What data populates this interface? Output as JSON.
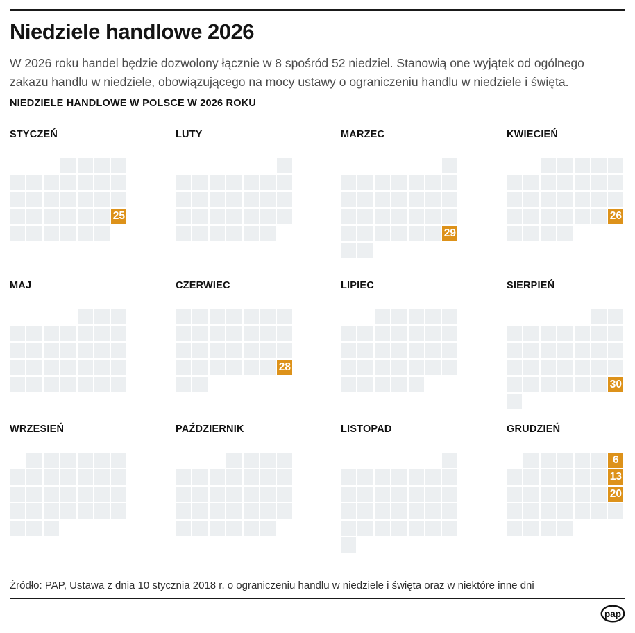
{
  "page": {
    "title": "Niedziele handlowe 2026",
    "intro_lines": [
      "W 2026 roku handel będzie dozwolony łącznie w 8 spośród 52 niedziel. Stanowią one wyjątek od ogólnego",
      "zakazu handlu w niedziele, obowiązującego na mocy ustawy o ograniczeniu handlu w niedziele i święta."
    ],
    "section_header": "NIEDZIELE HANDLOWE W POLSCE W 2026 ROKU",
    "source": "Źródło: PAP, Ustawa z dnia 10 stycznia 2018 r. o ograniczeniu handlu w niedziele i święta oraz w niektóre inne dni",
    "logo_text": "pap"
  },
  "colors": {
    "trading_sunday": "#DD921A",
    "day_cell": "#ECEFF1",
    "rule": "#1A1A1A"
  },
  "chart_data": {
    "type": "heatmap",
    "title": "NIEDZIELE HANDLOWE W POLSCE W 2026 ROKU",
    "year": 2026,
    "week_starts": "monday",
    "total_trading_sundays": 8,
    "total_sundays": 52,
    "months": [
      {
        "name": "STYCZEŃ",
        "first_weekday": 4,
        "num_days": 31,
        "trading_sundays": [
          25
        ]
      },
      {
        "name": "LUTY",
        "first_weekday": 7,
        "num_days": 28,
        "trading_sundays": []
      },
      {
        "name": "MARZEC",
        "first_weekday": 7,
        "num_days": 31,
        "trading_sundays": [
          29
        ]
      },
      {
        "name": "KWIECIEŃ",
        "first_weekday": 3,
        "num_days": 30,
        "trading_sundays": [
          26
        ]
      },
      {
        "name": "MAJ",
        "first_weekday": 5,
        "num_days": 31,
        "trading_sundays": []
      },
      {
        "name": "CZERWIEC",
        "first_weekday": 1,
        "num_days": 30,
        "trading_sundays": [
          28
        ]
      },
      {
        "name": "LIPIEC",
        "first_weekday": 3,
        "num_days": 31,
        "trading_sundays": []
      },
      {
        "name": "SIERPIEŃ",
        "first_weekday": 6,
        "num_days": 31,
        "trading_sundays": [
          30
        ]
      },
      {
        "name": "WRZESIEŃ",
        "first_weekday": 2,
        "num_days": 30,
        "trading_sundays": []
      },
      {
        "name": "PAŹDZIERNIK",
        "first_weekday": 4,
        "num_days": 31,
        "trading_sundays": []
      },
      {
        "name": "LISTOPAD",
        "first_weekday": 7,
        "num_days": 30,
        "trading_sundays": []
      },
      {
        "name": "GRUDZIEŃ",
        "first_weekday": 2,
        "num_days": 31,
        "trading_sundays": [
          6,
          13,
          20
        ]
      }
    ]
  }
}
